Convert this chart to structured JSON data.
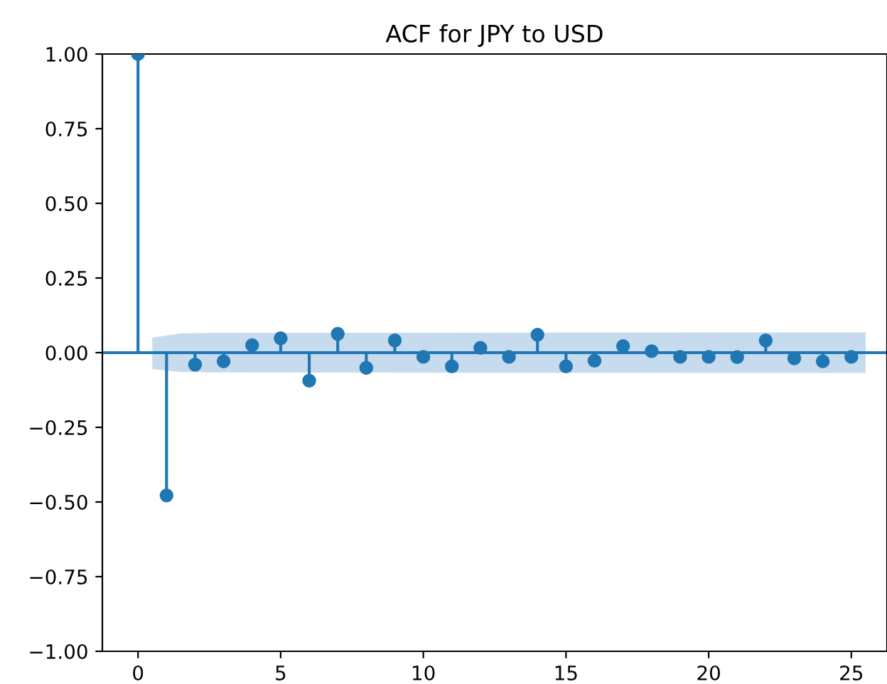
{
  "chart_data": {
    "type": "lollipop",
    "title": "ACF for JPY to USD",
    "xlim": [
      -1.25,
      26.25
    ],
    "xticks": [
      0,
      5,
      10,
      15,
      20,
      25
    ],
    "ylim": [
      -1,
      1
    ],
    "yticks": [
      {
        "value": -1,
        "label": "−1.00"
      },
      {
        "value": -0.75,
        "label": "−0.75"
      },
      {
        "value": -0.5,
        "label": "−0.50"
      },
      {
        "value": -0.25,
        "label": "−0.25"
      },
      {
        "value": 0,
        "label": "0.00"
      },
      {
        "value": 0.25,
        "label": "0.25"
      },
      {
        "value": 0.5,
        "label": "0.50"
      },
      {
        "value": 0.75,
        "label": "0.75"
      },
      {
        "value": 1,
        "label": "1.00"
      }
    ],
    "marker": "circle",
    "grid": false,
    "ref_lines": [
      {
        "axis": "y",
        "value": 0,
        "color": "#1f77b4"
      }
    ],
    "series": [
      {
        "color": "#1f77b4",
        "x": [
          0,
          1,
          2,
          3,
          4,
          5,
          6,
          7,
          8,
          9,
          10,
          11,
          12,
          13,
          14,
          15,
          16,
          17,
          18,
          19,
          20,
          21,
          22,
          23,
          24,
          25
        ],
        "values": [
          1.0,
          -0.478,
          -0.04,
          -0.029,
          0.025,
          0.048,
          -0.094,
          0.063,
          -0.051,
          0.041,
          -0.014,
          -0.046,
          0.016,
          -0.014,
          0.06,
          -0.046,
          -0.027,
          0.022,
          0.005,
          -0.014,
          -0.014,
          -0.015,
          0.041,
          -0.019,
          -0.029,
          -0.014
        ]
      },
      {
        "type": "area",
        "color": "#c6dbed",
        "x": [
          0.5,
          1.5,
          2.5,
          25.5
        ],
        "values": [
          null,
          null,
          null,
          null
        ],
        "lower": [
          -0.055,
          -0.065,
          -0.066,
          -0.068
        ],
        "upper": [
          0.05,
          0.065,
          0.066,
          0.068
        ]
      }
    ]
  }
}
